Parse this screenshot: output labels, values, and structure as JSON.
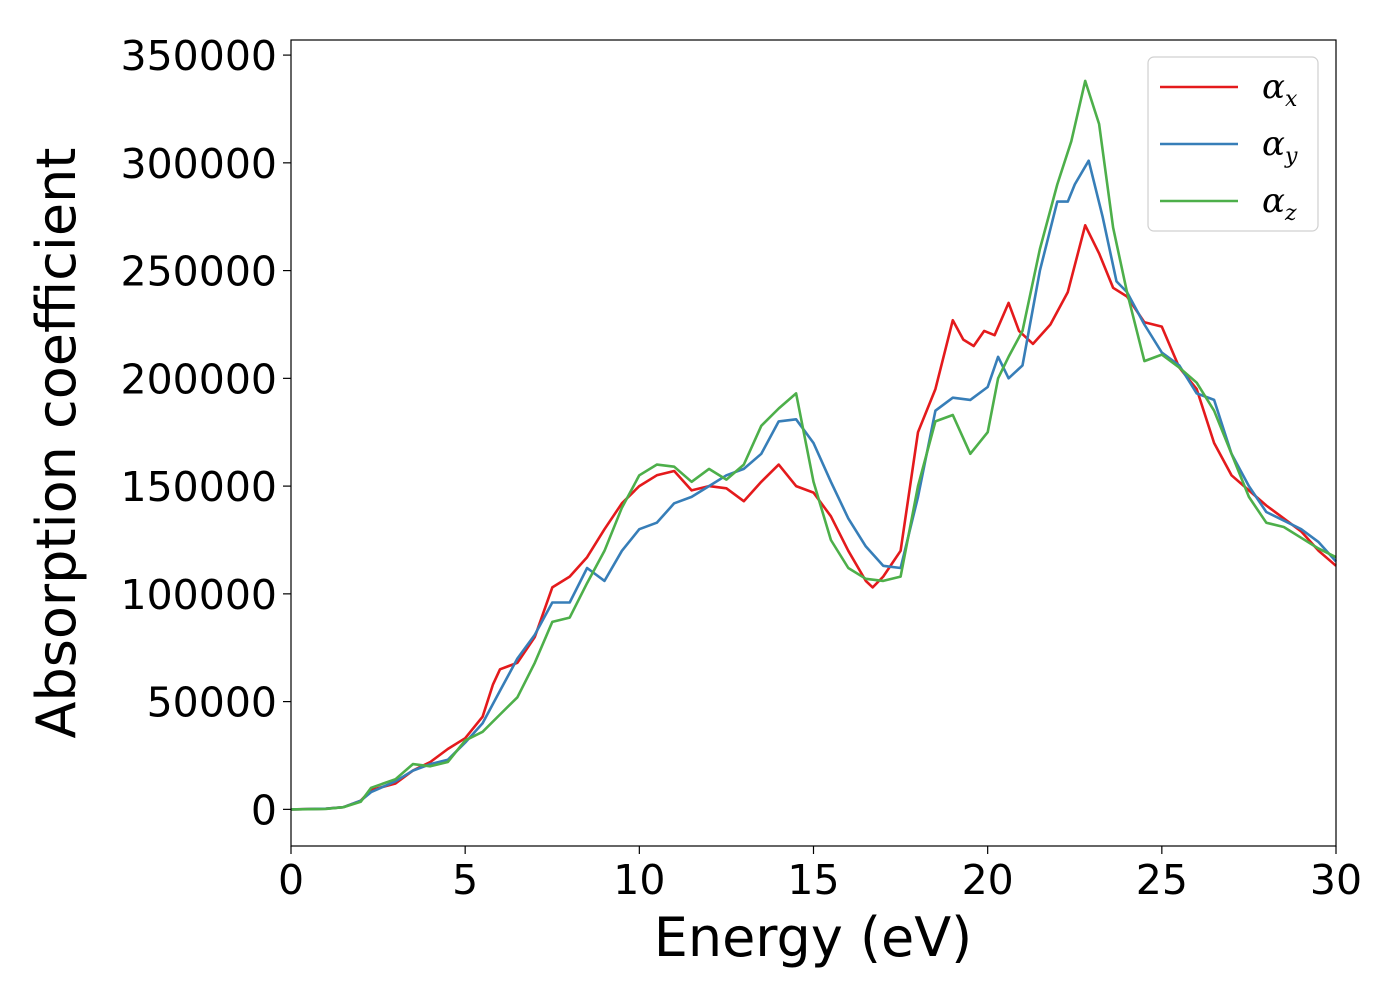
{
  "chart_data": {
    "type": "line",
    "xlabel": "Energy (eV)",
    "ylabel": "Absorption coefficient",
    "xlim": [
      0,
      30
    ],
    "ylim": [
      -17000,
      357000
    ],
    "xticks": [
      "0",
      "5",
      "10",
      "15",
      "20",
      "25",
      "30"
    ],
    "yticks": [
      "0",
      "50000",
      "100000",
      "150000",
      "200000",
      "250000",
      "300000",
      "350000"
    ],
    "grid": false,
    "legend_position": "top-right",
    "series": [
      {
        "name": "αx",
        "legend_symbol": "α",
        "legend_subscript": "x",
        "color": "#e41a1c",
        "x": [
          0,
          1,
          1.5,
          2,
          2.3,
          3,
          3.5,
          4,
          4.5,
          5,
          5.5,
          5.8,
          6,
          6.5,
          7,
          7.5,
          8,
          8.5,
          9,
          9.5,
          10,
          10.5,
          11,
          11.5,
          12,
          12.5,
          13,
          13.5,
          14,
          14.5,
          15,
          15.5,
          16,
          16.5,
          16.7,
          17,
          17.5,
          18,
          18.5,
          19,
          19.3,
          19.6,
          19.9,
          20.2,
          20.6,
          20.9,
          21.3,
          21.8,
          22.3,
          22.8,
          23.2,
          23.6,
          24,
          24.5,
          25,
          25.5,
          26,
          26.5,
          27,
          27.5,
          28,
          28.5,
          29,
          29.5,
          30
        ],
        "y": [
          0,
          300,
          1000,
          4000,
          9000,
          12000,
          18000,
          22000,
          28000,
          33000,
          43000,
          58000,
          65000,
          68000,
          80000,
          103000,
          108000,
          117000,
          130000,
          142000,
          150000,
          155000,
          157000,
          148000,
          150000,
          149000,
          143000,
          152000,
          160000,
          150000,
          147000,
          136000,
          120000,
          106000,
          103000,
          108000,
          120000,
          175000,
          195000,
          227000,
          218000,
          215000,
          222000,
          220000,
          235000,
          222000,
          216000,
          225000,
          240000,
          271000,
          258000,
          242000,
          238000,
          226000,
          224000,
          205000,
          195000,
          170000,
          155000,
          148000,
          141000,
          135000,
          129000,
          120000,
          113000
        ]
      },
      {
        "name": "αy",
        "legend_symbol": "α",
        "legend_subscript": "y",
        "color": "#377eb8",
        "x": [
          0,
          1,
          1.5,
          2,
          2.3,
          3,
          3.5,
          4,
          4.5,
          5,
          5.5,
          6,
          6.5,
          7,
          7.5,
          8,
          8.5,
          9,
          9.5,
          10,
          10.5,
          11,
          11.5,
          12,
          12.5,
          13,
          13.5,
          14,
          14.5,
          15,
          15.5,
          16,
          16.5,
          17,
          17.5,
          18,
          18.5,
          19,
          19.5,
          20,
          20.3,
          20.6,
          21,
          21.5,
          22,
          22.3,
          22.5,
          22.9,
          23.3,
          23.7,
          24,
          24.5,
          25,
          25.5,
          26,
          26.5,
          27,
          27.5,
          28,
          28.5,
          29,
          29.5,
          30
        ],
        "y": [
          0,
          300,
          1000,
          4000,
          8000,
          13000,
          18000,
          21000,
          23000,
          31000,
          40000,
          55000,
          70000,
          81000,
          96000,
          96000,
          112000,
          106000,
          120000,
          130000,
          133000,
          142000,
          145000,
          150000,
          155000,
          158000,
          165000,
          180000,
          181000,
          170000,
          152000,
          135000,
          122000,
          113000,
          112000,
          145000,
          185000,
          191000,
          190000,
          196000,
          210000,
          200000,
          206000,
          250000,
          282000,
          282000,
          290000,
          301000,
          275000,
          245000,
          240000,
          225000,
          212000,
          206000,
          193000,
          190000,
          165000,
          150000,
          138000,
          134000,
          130000,
          124000,
          115000
        ]
      },
      {
        "name": "αz",
        "legend_symbol": "α",
        "legend_subscript": "z",
        "color": "#4daf4a",
        "x": [
          0,
          1,
          1.5,
          2,
          2.3,
          3,
          3.5,
          4,
          4.5,
          5,
          5.5,
          6,
          6.5,
          7,
          7.5,
          8,
          8.5,
          9,
          9.5,
          10,
          10.5,
          11,
          11.5,
          12,
          12.5,
          13,
          13.5,
          14,
          14.5,
          15,
          15.5,
          16,
          16.5,
          17,
          17.5,
          18,
          18.5,
          19,
          19.5,
          20,
          20.3,
          20.6,
          21,
          21.5,
          22,
          22.4,
          22.8,
          23.2,
          23.6,
          24,
          24.5,
          25,
          25.5,
          26,
          26.5,
          27,
          27.5,
          28,
          28.5,
          29,
          29.5,
          30
        ],
        "y": [
          0,
          200,
          1000,
          3500,
          10000,
          14000,
          21000,
          20000,
          22000,
          32000,
          36000,
          44000,
          52000,
          68000,
          87000,
          89000,
          105000,
          120000,
          140000,
          155000,
          160000,
          159000,
          152000,
          158000,
          153000,
          160000,
          178000,
          186000,
          193000,
          152000,
          125000,
          112000,
          107000,
          106000,
          108000,
          150000,
          180000,
          183000,
          165000,
          175000,
          200000,
          210000,
          222000,
          260000,
          290000,
          310000,
          338000,
          318000,
          270000,
          240000,
          208000,
          211000,
          205000,
          198000,
          185000,
          165000,
          145000,
          133000,
          131000,
          126000,
          121000,
          117000
        ]
      }
    ]
  }
}
